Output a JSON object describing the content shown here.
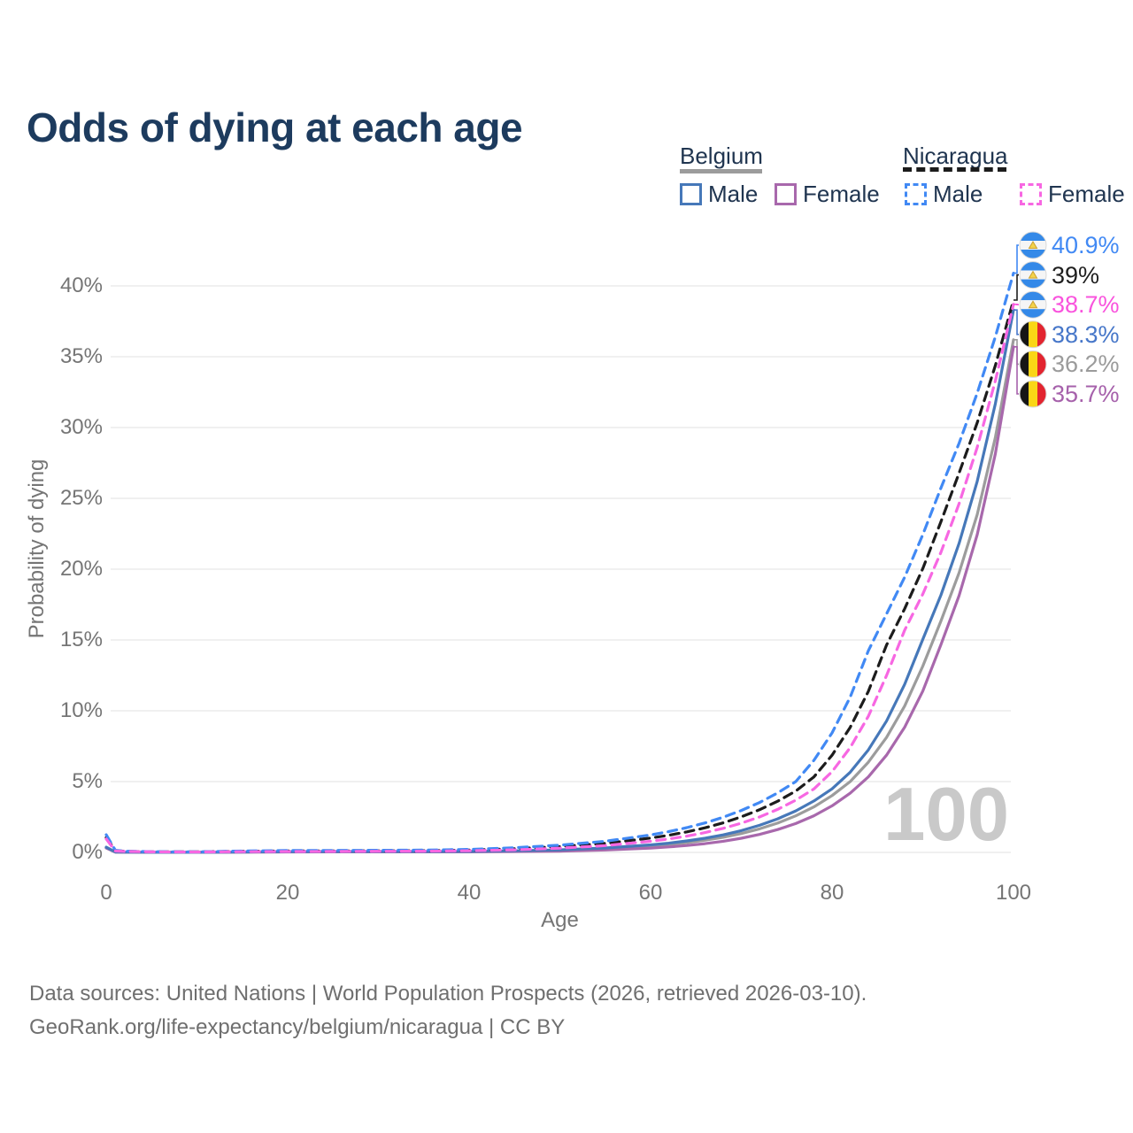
{
  "title": "Odds of dying at each age",
  "legend": {
    "belgium_label": "Belgium",
    "nicaragua_label": "Nicaragua",
    "male_label": "Male",
    "female_label": "Female"
  },
  "watermark": "100",
  "footer": {
    "line1": "Data sources: United Nations | World Population Prospects (2026, retrieved 2026-03-10).",
    "line2": "GeoRank.org/life-expectancy/belgium/nicaragua | CC BY"
  },
  "chart_data": {
    "type": "line",
    "title": "Odds of dying at each age",
    "xlabel": "Age",
    "ylabel": "Probability of dying",
    "xlim": [
      0,
      100
    ],
    "ylim": [
      0,
      43
    ],
    "xticks": [
      0,
      20,
      40,
      60,
      80,
      100
    ],
    "yticks": [
      0,
      5,
      10,
      15,
      20,
      25,
      30,
      35,
      40
    ],
    "ytick_labels": [
      "0%",
      "5%",
      "10%",
      "15%",
      "20%",
      "25%",
      "30%",
      "35%",
      "40%"
    ],
    "grid": "horizontal",
    "legend_position": "top-right",
    "x": [
      0,
      1,
      2,
      5,
      10,
      15,
      20,
      25,
      30,
      35,
      40,
      45,
      50,
      55,
      60,
      62,
      64,
      66,
      68,
      70,
      72,
      74,
      76,
      78,
      80,
      82,
      84,
      86,
      88,
      90,
      92,
      94,
      96,
      98,
      100
    ],
    "series": [
      {
        "name": "Nicaragua Male",
        "country": "Nicaragua",
        "sex": "Male",
        "color": "#4189f4",
        "label_color": "#4189f4",
        "dash": true,
        "flag": "nicaragua",
        "end_label": "40.9%",
        "values": [
          1.25,
          0.15,
          0.09,
          0.05,
          0.04,
          0.1,
          0.13,
          0.14,
          0.15,
          0.16,
          0.21,
          0.33,
          0.51,
          0.79,
          1.23,
          1.47,
          1.75,
          2.08,
          2.48,
          2.96,
          3.52,
          4.2,
          5.0,
          6.5,
          8.44,
          10.96,
          14.24,
          16.83,
          19.43,
          22.43,
          25.73,
          28.89,
          32.43,
          36.41,
          40.9
        ]
      },
      {
        "name": "Nicaragua Both sexes",
        "country": "Nicaragua",
        "sex": "Both sexes",
        "color": "#1c1c1c",
        "label_color": "#1f1f1f",
        "dash": true,
        "flag": "nicaragua",
        "end_label": "39%",
        "values": [
          1.05,
          0.12,
          0.08,
          0.04,
          0.035,
          0.08,
          0.1,
          0.1,
          0.11,
          0.12,
          0.16,
          0.26,
          0.41,
          0.64,
          1.01,
          1.21,
          1.45,
          1.74,
          2.09,
          2.51,
          3.01,
          3.61,
          4.33,
          5.33,
          6.86,
          8.83,
          11.37,
          14.63,
          17.2,
          20.04,
          23.35,
          26.78,
          30.34,
          34.38,
          39.0
        ]
      },
      {
        "name": "Nicaragua Female",
        "country": "Nicaragua",
        "sex": "Female",
        "color": "#f767e2",
        "label_color": "#f953dd",
        "dash": true,
        "flag": "nicaragua",
        "end_label": "38.7%",
        "values": [
          0.95,
          0.1,
          0.07,
          0.035,
          0.03,
          0.05,
          0.06,
          0.07,
          0.08,
          0.09,
          0.12,
          0.18,
          0.3,
          0.48,
          0.79,
          0.95,
          1.15,
          1.4,
          1.7,
          2.06,
          2.5,
          3.04,
          3.69,
          4.48,
          5.7,
          7.4,
          9.61,
          12.48,
          15.69,
          18.24,
          21.19,
          24.62,
          28.6,
          33.3,
          38.7
        ]
      },
      {
        "name": "Belgium Male",
        "country": "Belgium",
        "sex": "Male",
        "color": "#4678b9",
        "label_color": "#4777c9",
        "dash": false,
        "flag": "belgium",
        "end_label": "38.3%",
        "values": [
          0.37,
          0.03,
          0.02,
          0.01,
          0.01,
          0.03,
          0.05,
          0.06,
          0.06,
          0.06,
          0.07,
          0.11,
          0.18,
          0.31,
          0.53,
          0.65,
          0.81,
          1.0,
          1.24,
          1.54,
          1.91,
          2.37,
          2.93,
          3.63,
          4.49,
          5.66,
          7.24,
          9.27,
          11.86,
          15.04,
          18.17,
          21.82,
          26.2,
          31.68,
          38.3
        ]
      },
      {
        "name": "Belgium Both sexes",
        "country": "Belgium",
        "sex": "Both sexes",
        "color": "#9c9c9c",
        "label_color": "#9b9b9b",
        "dash": false,
        "flag": "belgium",
        "end_label": "36.2%",
        "values": [
          0.34,
          0.025,
          0.018,
          0.01,
          0.01,
          0.025,
          0.04,
          0.05,
          0.05,
          0.05,
          0.055,
          0.09,
          0.15,
          0.26,
          0.44,
          0.55,
          0.69,
          0.86,
          1.07,
          1.33,
          1.66,
          2.07,
          2.58,
          3.21,
          4.01,
          5.0,
          6.37,
          8.11,
          10.33,
          13.15,
          16.34,
          19.74,
          23.85,
          29.3,
          36.2
        ]
      },
      {
        "name": "Belgium Female",
        "country": "Belgium",
        "sex": "Female",
        "color": "#a868ac",
        "label_color": "#a661ab",
        "dash": false,
        "flag": "belgium",
        "end_label": "35.7%",
        "values": [
          0.31,
          0.02,
          0.015,
          0.01,
          0.01,
          0.02,
          0.03,
          0.035,
          0.035,
          0.04,
          0.04,
          0.06,
          0.09,
          0.17,
          0.3,
          0.39,
          0.49,
          0.62,
          0.79,
          1.0,
          1.27,
          1.61,
          2.04,
          2.59,
          3.29,
          4.18,
          5.33,
          6.86,
          8.84,
          11.39,
          14.67,
          18.13,
          22.44,
          28.15,
          35.7
        ]
      }
    ]
  }
}
